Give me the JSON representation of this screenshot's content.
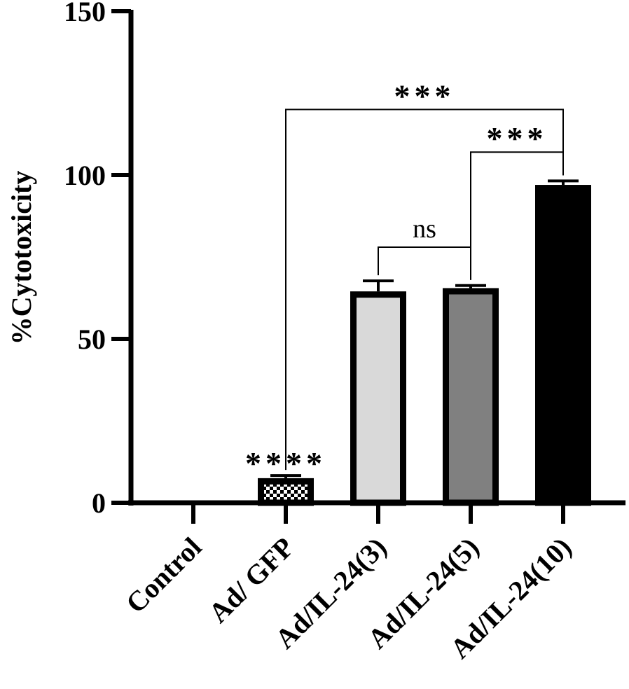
{
  "chart_data": {
    "type": "bar",
    "title": "",
    "xlabel": "",
    "ylabel": "%Cytotoxicity",
    "ylim": [
      0,
      150
    ],
    "yticks": [
      0,
      50,
      100,
      150
    ],
    "grid": false,
    "legend": "none",
    "categories": [
      "Control",
      "Ad/ GFP",
      "Ad/IL-24(3)",
      "Ad/IL-24(5)",
      "Ad/IL-24(10)"
    ],
    "values": [
      0,
      7.5,
      64.5,
      65.5,
      97
    ],
    "errors": [
      0,
      0.8,
      3.2,
      0.8,
      1.2
    ],
    "fills": [
      "#ffffff",
      "checkered",
      "#d9d9d9",
      "#808080",
      "#000000"
    ],
    "bar_annotations": [
      {
        "category": "Ad/ GFP",
        "text": "****"
      }
    ],
    "comparisons": [
      {
        "from": "Ad/IL-24(3)",
        "to": "Ad/IL-24(5)",
        "text": "ns",
        "y": 78
      },
      {
        "from": "Ad/IL-24(5)",
        "to": "Ad/IL-24(10)",
        "text": "***",
        "y": 107
      },
      {
        "from": "Ad/ GFP",
        "to": "Ad/IL-24(10)",
        "text": "***",
        "y": 120
      }
    ]
  }
}
